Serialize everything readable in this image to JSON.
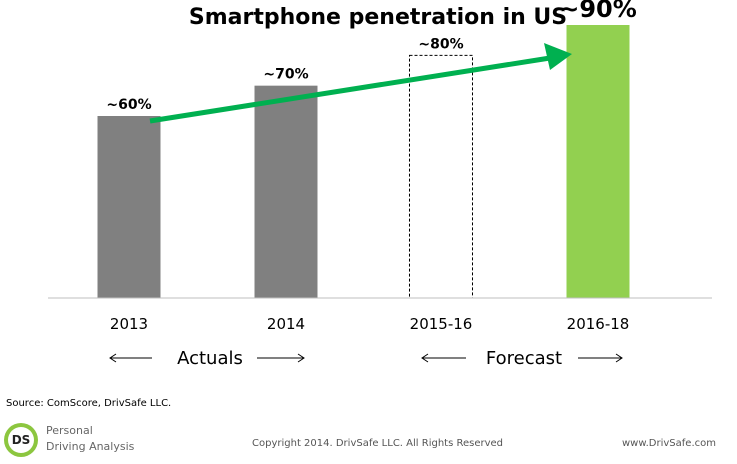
{
  "chart_data": {
    "type": "bar",
    "title": "Smartphone penetration in US",
    "categories": [
      "2013",
      "2014",
      "2015-16",
      "2016-18"
    ],
    "values": [
      60,
      70,
      80,
      90
    ],
    "data_labels": [
      "~60%",
      "~70%",
      "~80%",
      "~90%"
    ],
    "ylim": [
      0,
      100
    ],
    "grid": false,
    "legend": "none",
    "groups": [
      {
        "label": "Actuals",
        "categories": [
          "2013",
          "2014"
        ]
      },
      {
        "label": "Forecast",
        "categories": [
          "2015-16",
          "2016-18"
        ]
      }
    ],
    "styles": [
      {
        "fill": "#808080",
        "border": "none"
      },
      {
        "fill": "#808080",
        "border": "none"
      },
      {
        "fill": "#ffffff",
        "border": "dashed"
      },
      {
        "fill": "#92d050",
        "border": "none"
      }
    ],
    "trend_arrow_color": "#00b050"
  },
  "footer": {
    "source": "Source: ComScore, DrivSafe LLC.",
    "logo_text": "DS",
    "brand_line1": "Personal",
    "brand_line2": "Driving Analysis",
    "copyright": "Copyright 2014. DrivSafe LLC. All Rights Reserved",
    "website": "www.DrivSafe.com"
  },
  "colors": {
    "axis": "#bfbfbf",
    "logo_green": "#8cc63f"
  }
}
